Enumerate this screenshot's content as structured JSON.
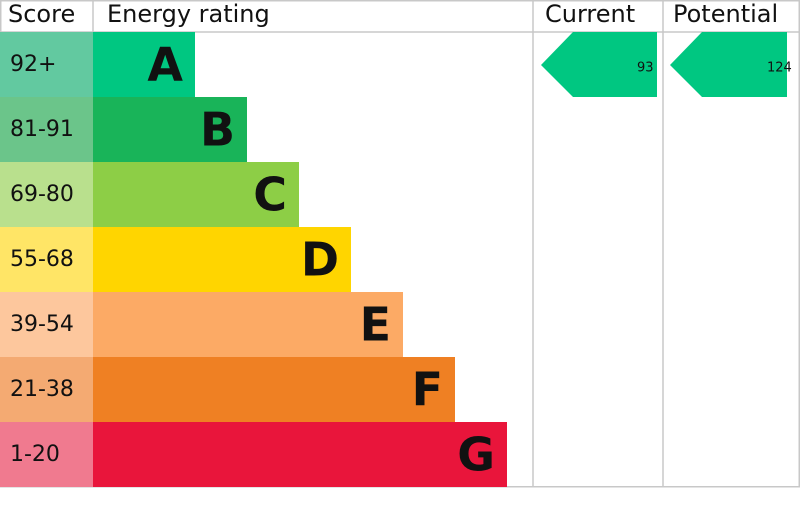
{
  "header": {
    "score": "Score",
    "rating": "Energy rating",
    "current": "Current",
    "potential": "Potential"
  },
  "bands": [
    {
      "score": "92+",
      "letter": "A"
    },
    {
      "score": "81-91",
      "letter": "B"
    },
    {
      "score": "69-80",
      "letter": "C"
    },
    {
      "score": "55-68",
      "letter": "D"
    },
    {
      "score": "39-54",
      "letter": "E"
    },
    {
      "score": "21-38",
      "letter": "F"
    },
    {
      "score": "1-20",
      "letter": "G"
    }
  ],
  "current": "93",
  "potential": "124"
}
